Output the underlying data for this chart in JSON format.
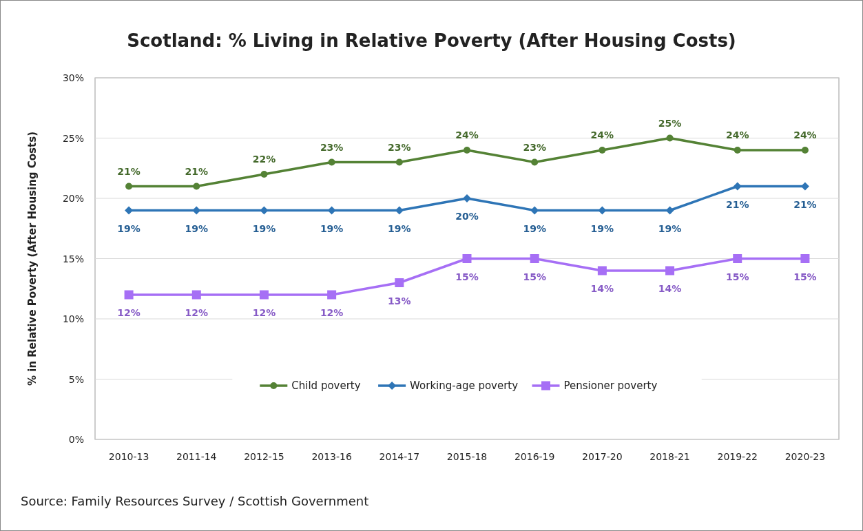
{
  "chart_data": {
    "type": "line",
    "title": "Scotland: % Living in Relative Poverty (After Housing Costs)",
    "ylabel": "% in Relative Poverty (After Housing Costs)",
    "annotations": [
      "Source: Family Resources Survey / Scottish Government"
    ],
    "categories": [
      "2010-13",
      "2011-14",
      "2012-15",
      "2013-16",
      "2014-17",
      "2015-18",
      "2016-19",
      "2017-20",
      "2018-21",
      "2019-22",
      "2020-23"
    ],
    "series": [
      {
        "name": "Child poverty",
        "color": "#548235",
        "marker": "circle",
        "values": [
          21,
          21,
          22,
          23,
          23,
          24,
          23,
          24,
          25,
          24,
          24
        ],
        "value_labels": [
          "21%",
          "21%",
          "22%",
          "23%",
          "23%",
          "24%",
          "23%",
          "24%",
          "25%",
          "24%",
          "24%"
        ]
      },
      {
        "name": "Working-age poverty",
        "color": "#2e75b6",
        "marker": "diamond",
        "values": [
          19,
          19,
          19,
          19,
          19,
          20,
          19,
          19,
          19,
          21,
          21
        ],
        "value_labels": [
          "19%",
          "19%",
          "19%",
          "19%",
          "19%",
          "20%",
          "19%",
          "19%",
          "19%",
          "21%",
          "21%"
        ]
      },
      {
        "name": "Pensioner poverty",
        "color": "#a66ff5",
        "marker": "square",
        "values": [
          12,
          12,
          12,
          12,
          13,
          15,
          15,
          14,
          14,
          15,
          15
        ],
        "value_labels": [
          "12%",
          "12%",
          "12%",
          "12%",
          "13%",
          "15%",
          "15%",
          "14%",
          "14%",
          "15%",
          "15%"
        ]
      }
    ],
    "ylim": [
      0,
      30
    ],
    "yticks": [
      {
        "value": 0,
        "label": "0%"
      },
      {
        "value": 5,
        "label": "5%"
      },
      {
        "value": 10,
        "label": "10%"
      },
      {
        "value": 15,
        "label": "15%"
      },
      {
        "value": 20,
        "label": "20%"
      },
      {
        "value": 25,
        "label": "25%"
      },
      {
        "value": 30,
        "label": "30%"
      }
    ],
    "grid": "y",
    "legend": "bottom",
    "line_style": "solid"
  }
}
